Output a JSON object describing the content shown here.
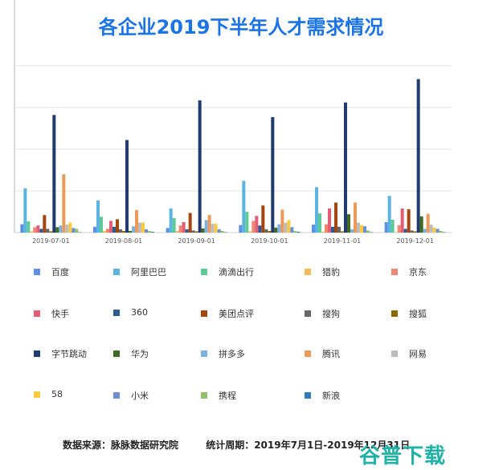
{
  "chart_data": {
    "type": "bar",
    "title": "各企业2019下半年人才需求情况",
    "xlabel": "",
    "ylabel": "",
    "ylim": [
      0,
      4
    ],
    "grid": true,
    "y_tick_labels_shown": false,
    "legend_position": "bottom",
    "categories": [
      "2019-07-01",
      "2019-08-01",
      "2019-09-01",
      "2019-10-01",
      "2019-11-01",
      "2019-12-01"
    ],
    "series": [
      {
        "name": "百度",
        "color": "#5b8fe0",
        "values": [
          0.2,
          0.14,
          0.11,
          0.18,
          0.19,
          0.25
        ]
      },
      {
        "name": "阿里巴巴",
        "color": "#5ab4e0",
        "values": [
          1.06,
          0.77,
          0.58,
          1.24,
          1.09,
          0.88
        ]
      },
      {
        "name": "滴滴出行",
        "color": "#5ccb96",
        "values": [
          0.27,
          0.38,
          0.35,
          0.5,
          0.46,
          0.31
        ]
      },
      {
        "name": "猎豹",
        "color": "#f9b955",
        "values": [
          0.03,
          0.04,
          0.04,
          0.03,
          0.02,
          0.01
        ]
      },
      {
        "name": "京东",
        "color": "#ef8671",
        "values": [
          0.13,
          0.09,
          0.17,
          0.28,
          0.2,
          0.18
        ]
      },
      {
        "name": "快手",
        "color": "#e35d74",
        "values": [
          0.17,
          0.28,
          0.25,
          0.4,
          0.58,
          0.58
        ]
      },
      {
        "name": "360",
        "color": "#2a5d94",
        "values": [
          0.09,
          0.14,
          0.08,
          0.17,
          0.14,
          0.09
        ]
      },
      {
        "name": "美团点评",
        "color": "#a3460f",
        "values": [
          0.42,
          0.32,
          0.47,
          0.65,
          0.72,
          0.56
        ]
      },
      {
        "name": "搜狗",
        "color": "#666666",
        "values": [
          0.09,
          0.08,
          0.05,
          0.08,
          0.14,
          0.05
        ]
      },
      {
        "name": "搜狐",
        "color": "#8a6a00",
        "values": [
          0.03,
          0.04,
          0.03,
          0.04,
          0.03,
          0.03
        ]
      },
      {
        "name": "字节跳动",
        "color": "#1f3b70",
        "values": [
          2.82,
          2.22,
          3.17,
          2.77,
          3.12,
          3.68
        ]
      },
      {
        "name": "华为",
        "color": "#3f6b22",
        "values": [
          0.13,
          0.04,
          0.1,
          0.12,
          0.44,
          0.39
        ]
      },
      {
        "name": "拼多多",
        "color": "#7cb2de",
        "values": [
          0.17,
          0.15,
          0.3,
          0.2,
          0.08,
          0.09
        ]
      },
      {
        "name": "腾讯",
        "color": "#ec9a5c",
        "values": [
          1.4,
          0.54,
          0.42,
          0.55,
          0.72,
          0.45
        ]
      },
      {
        "name": "网易",
        "color": "#bdbdbd",
        "values": [
          0.19,
          0.24,
          0.21,
          0.24,
          0.24,
          0.19
        ]
      },
      {
        "name": "58",
        "color": "#fcca3d",
        "values": [
          0.24,
          0.24,
          0.21,
          0.3,
          0.18,
          0.12
        ]
      },
      {
        "name": "小米",
        "color": "#6b8fd0",
        "values": [
          0.11,
          0.08,
          0.08,
          0.13,
          0.15,
          0.09
        ]
      },
      {
        "name": "携程",
        "color": "#8dc26b",
        "values": [
          0.09,
          0.04,
          0.04,
          0.04,
          0.05,
          0.04
        ]
      },
      {
        "name": "新浪",
        "color": "#2f7bbf",
        "values": [
          0.01,
          0.02,
          0.01,
          0.02,
          0.01,
          0.01
        ]
      }
    ]
  },
  "footer": {
    "source": "数据来源：脉脉数据研究院",
    "period": "统计周期：2019年7月1日-2019年12月31日"
  },
  "watermark": "谷普下载"
}
